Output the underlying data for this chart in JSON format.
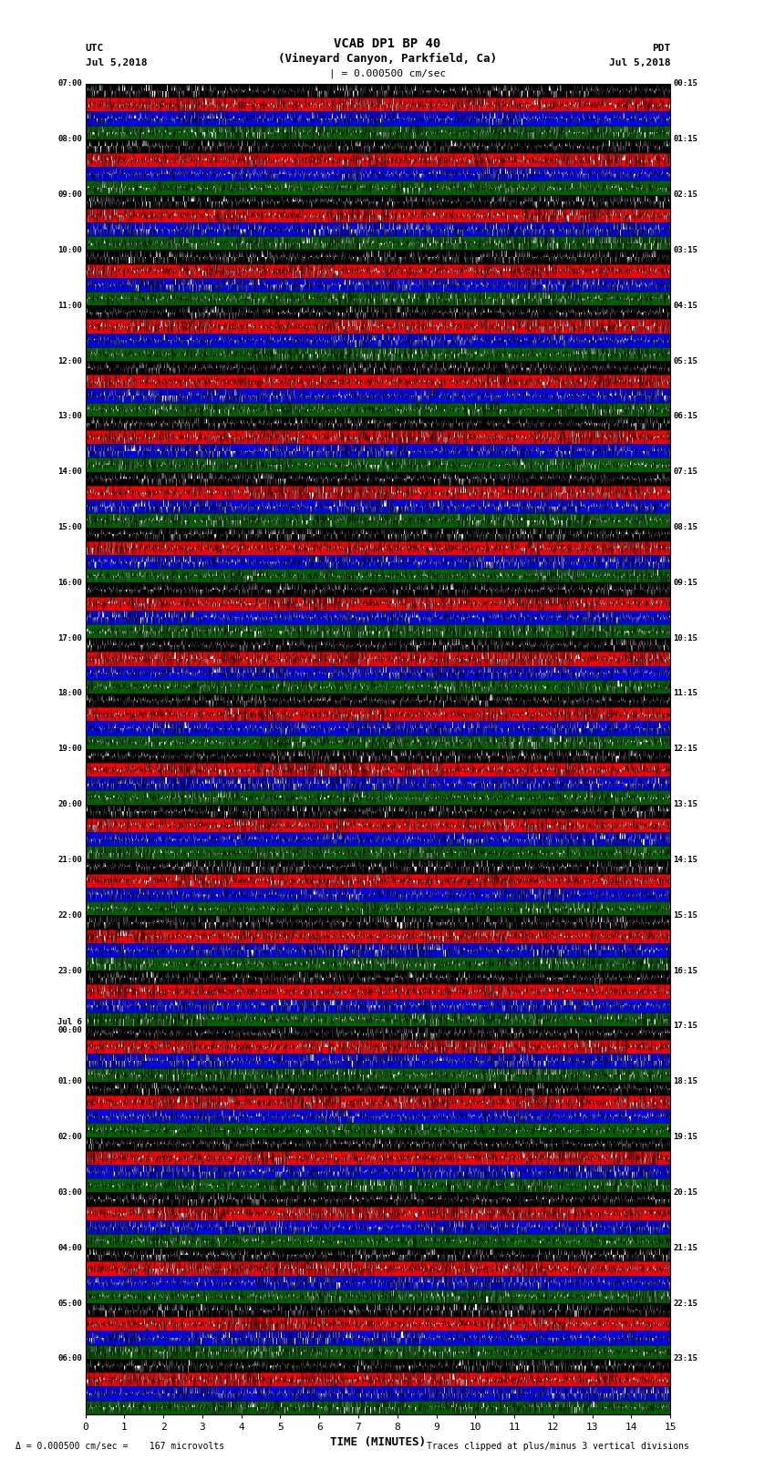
{
  "title_line1": "VCAB DP1 BP 40",
  "title_line2": "(Vineyard Canyon, Parkfield, Ca)",
  "scale_label": "| = 0.000500 cm/sec",
  "utc_label": "UTC",
  "utc_date": "Jul 5,2018",
  "pdt_label": "PDT",
  "pdt_date": "Jul 5,2018",
  "xlabel": "TIME (MINUTES)",
  "footer_left": "= 0.000500 cm/sec =    167 microvolts",
  "footer_right": "Traces clipped at plus/minus 3 vertical divisions",
  "xmin": 0,
  "xmax": 15,
  "num_hour_blocks": 24,
  "traces_per_hour": 4,
  "bg_colors": [
    "#000000",
    "#ff0000",
    "#0000ff",
    "#006400"
  ],
  "signal_colors_on_bg": [
    "#ffffff",
    "#ffffff",
    "#ffffff",
    "#ffffff"
  ],
  "bg_color": "#ffffff",
  "fig_width": 8.5,
  "fig_height": 16.13,
  "dpi": 100,
  "left_labels_utc": [
    "07:00",
    "08:00",
    "09:00",
    "10:00",
    "11:00",
    "12:00",
    "13:00",
    "14:00",
    "15:00",
    "16:00",
    "17:00",
    "18:00",
    "19:00",
    "20:00",
    "21:00",
    "22:00",
    "23:00",
    "Jul 6\n00:00",
    "01:00",
    "02:00",
    "03:00",
    "04:00",
    "05:00",
    "06:00"
  ],
  "right_labels_pdt": [
    "00:15",
    "01:15",
    "02:15",
    "03:15",
    "04:15",
    "05:15",
    "06:15",
    "07:15",
    "08:15",
    "09:15",
    "10:15",
    "11:15",
    "12:15",
    "13:15",
    "14:15",
    "15:15",
    "16:15",
    "17:15",
    "18:15",
    "19:15",
    "20:15",
    "21:15",
    "22:15",
    "23:15"
  ],
  "tick_positions_x": [
    0,
    1,
    2,
    3,
    4,
    5,
    6,
    7,
    8,
    9,
    10,
    11,
    12,
    13,
    14,
    15
  ],
  "xtick_labels": [
    "0",
    "1",
    "2",
    "3",
    "4",
    "5",
    "6",
    "7",
    "8",
    "9",
    "10",
    "11",
    "12",
    "13",
    "14",
    "15"
  ]
}
